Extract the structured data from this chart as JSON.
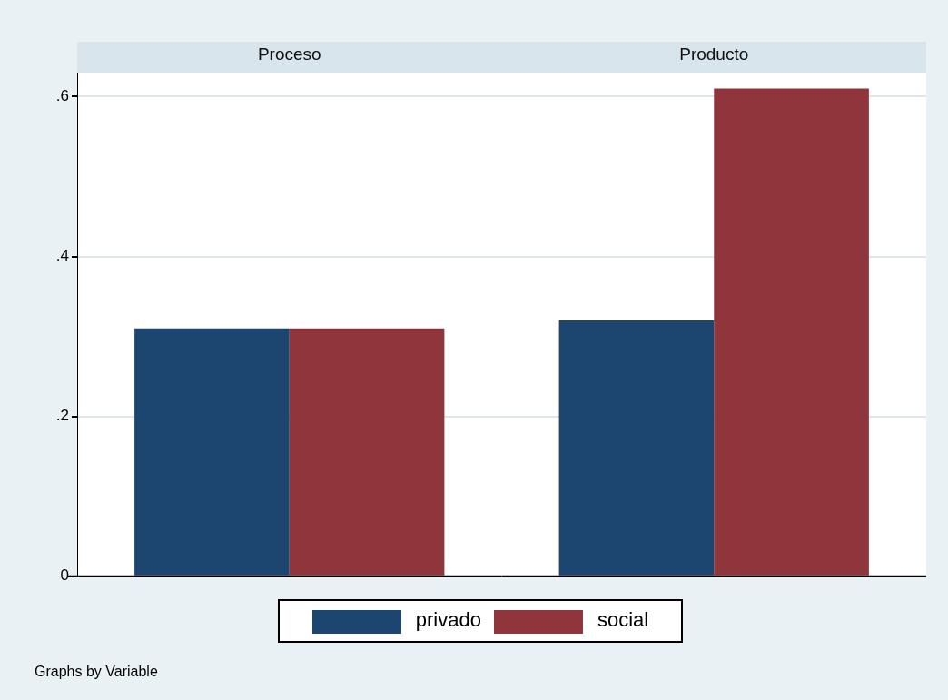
{
  "chart_data": {
    "type": "bar",
    "categories": [
      "Proceso",
      "Producto"
    ],
    "series": [
      {
        "name": "privado",
        "color": "#1c466f",
        "values": [
          0.31,
          0.32
        ]
      },
      {
        "name": "social",
        "color": "#90353c",
        "values": [
          0.31,
          0.61
        ]
      }
    ],
    "ylim": [
      0,
      0.63
    ],
    "yticks": [
      {
        "value": 0,
        "label": "0"
      },
      {
        "value": 0.2,
        "label": ".2"
      },
      {
        "value": 0.4,
        "label": ".4"
      },
      {
        "value": 0.6,
        "label": ".6"
      }
    ],
    "grid": "y",
    "legend": "bottom",
    "annotations": [
      "Graphs by Variable"
    ]
  }
}
